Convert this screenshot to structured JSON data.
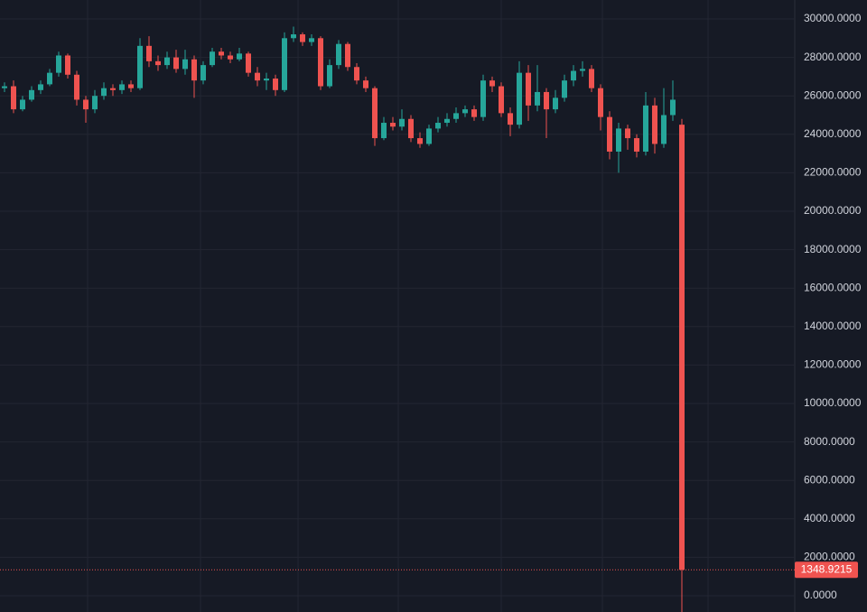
{
  "chart_data": {
    "type": "candlestick",
    "up_color": "#26a69a",
    "down_color": "#ef5350",
    "grid": true,
    "ylim": [
      -845,
      30986
    ],
    "yticks": [
      {
        "value": 0,
        "label": "0.0000"
      },
      {
        "value": 2000,
        "label": "2000.0000"
      },
      {
        "value": 4000,
        "label": "4000.0000"
      },
      {
        "value": 6000,
        "label": "6000.0000"
      },
      {
        "value": 8000,
        "label": "8000.0000"
      },
      {
        "value": 10000,
        "label": "10000.0000"
      },
      {
        "value": 12000,
        "label": "12000.0000"
      },
      {
        "value": 14000,
        "label": "14000.0000"
      },
      {
        "value": 16000,
        "label": "16000.0000"
      },
      {
        "value": 18000,
        "label": "18000.0000"
      },
      {
        "value": 20000,
        "label": "20000.0000"
      },
      {
        "value": 22000,
        "label": "22000.0000"
      },
      {
        "value": 24000,
        "label": "24000.0000"
      },
      {
        "value": 26000,
        "label": "26000.0000"
      },
      {
        "value": 28000,
        "label": "28000.0000"
      },
      {
        "value": 30000,
        "label": "30000.0000"
      }
    ],
    "open": [
      26400,
      26500,
      25300,
      25800,
      26300,
      26600,
      27200,
      28100,
      27100,
      25800,
      25300,
      26000,
      26400,
      26300,
      26600,
      26400,
      28600,
      27800,
      27600,
      28000,
      27400,
      27900,
      26800,
      27600,
      28300,
      28100,
      27900,
      28200,
      27200,
      26800,
      26900,
      26300,
      29000,
      29200,
      28800,
      29000,
      26500,
      27600,
      28700,
      27500,
      26800,
      26400,
      23800,
      24600,
      24400,
      24800,
      23800,
      23500,
      24300,
      24600,
      24800,
      25100,
      25300,
      24900,
      26800,
      26500,
      25100,
      24500,
      27200,
      25500,
      26200,
      25300,
      25900,
      26800,
      27300,
      27400,
      26400,
      24900,
      23100,
      24300,
      23800,
      23100,
      25500,
      23500,
      25000,
      24500
    ],
    "high": [
      26700,
      26800,
      26000,
      26500,
      26800,
      27400,
      28300,
      28200,
      27300,
      26000,
      26300,
      26700,
      26600,
      26800,
      26800,
      29000,
      29100,
      28100,
      28300,
      28400,
      28400,
      28100,
      27800,
      28500,
      28500,
      28300,
      28500,
      28300,
      27500,
      27200,
      27100,
      29300,
      29600,
      29300,
      29200,
      29100,
      27900,
      28900,
      28800,
      27700,
      27000,
      26500,
      24900,
      24900,
      25300,
      25000,
      24100,
      24500,
      24900,
      25100,
      25400,
      25500,
      25500,
      27100,
      27000,
      26700,
      25400,
      27800,
      27600,
      27600,
      26400,
      26300,
      27100,
      27600,
      27800,
      27600,
      26600,
      25200,
      24600,
      24500,
      24000,
      26200,
      25900,
      26400,
      26800,
      24800
    ],
    "low": [
      26200,
      25100,
      25200,
      25700,
      26100,
      26500,
      27000,
      26900,
      25500,
      24600,
      25100,
      25800,
      26000,
      26100,
      26200,
      26300,
      27500,
      27300,
      27400,
      27200,
      27100,
      25900,
      26600,
      27500,
      27900,
      27700,
      27800,
      27000,
      26500,
      26300,
      26000,
      26200,
      28800,
      28600,
      28600,
      26300,
      26400,
      27400,
      27300,
      26600,
      26200,
      23400,
      23700,
      24200,
      24200,
      23600,
      23300,
      23400,
      24100,
      24400,
      24600,
      24900,
      24700,
      24700,
      26200,
      24900,
      23900,
      24300,
      24700,
      25200,
      23800,
      25100,
      25700,
      26500,
      27000,
      26200,
      24200,
      22700,
      22000,
      23200,
      22800,
      22900,
      23000,
      23300,
      24700,
      -845
    ],
    "close": [
      26500,
      25300,
      25800,
      26300,
      26600,
      27200,
      28100,
      27100,
      25800,
      25300,
      26000,
      26400,
      26300,
      26600,
      26400,
      28600,
      27800,
      27600,
      28000,
      27400,
      27900,
      26800,
      27600,
      28300,
      28100,
      27900,
      28200,
      27200,
      26800,
      26900,
      26300,
      29000,
      29200,
      28800,
      29000,
      26500,
      27600,
      28700,
      27500,
      26800,
      26400,
      23800,
      24600,
      24400,
      24800,
      23800,
      23500,
      24300,
      24600,
      24800,
      25100,
      25300,
      24900,
      26800,
      26500,
      25100,
      24500,
      27200,
      25500,
      26200,
      25300,
      25900,
      26800,
      27300,
      27400,
      26400,
      24900,
      23100,
      24300,
      23800,
      23100,
      25500,
      23500,
      25000,
      25800,
      1348.9215
    ]
  }
}
